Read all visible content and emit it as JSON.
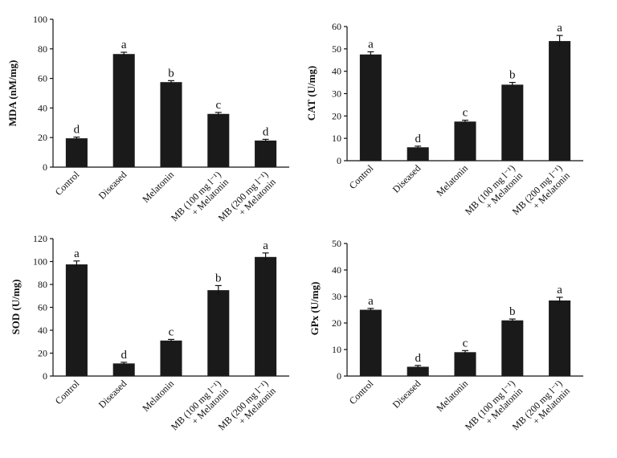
{
  "chart_data": [
    {
      "type": "bar",
      "ylabel": "MDA  (nM/mg)",
      "ylim": [
        0,
        100
      ],
      "yticks": [
        0,
        20,
        40,
        60,
        80,
        100
      ],
      "categories": [
        [
          "Control"
        ],
        [
          "Diseased"
        ],
        [
          "Melatonin"
        ],
        [
          "MB (100 mg l⁻¹)",
          "+ Melatonin"
        ],
        [
          "MB (200 mg l⁻¹)",
          "+ Melatonin"
        ]
      ],
      "values": [
        19.5,
        76.5,
        57.5,
        36,
        18
      ],
      "errors": [
        0.8,
        1.2,
        1.0,
        1.0,
        0.8
      ],
      "significance": [
        "d",
        "a",
        "b",
        "c",
        "d"
      ]
    },
    {
      "type": "bar",
      "ylabel": "CAT  (U/mg)",
      "ylim": [
        0,
        60
      ],
      "yticks": [
        0,
        10,
        20,
        30,
        40,
        50,
        60
      ],
      "categories": [
        [
          "Control"
        ],
        [
          "Diseased"
        ],
        [
          "Melatonin"
        ],
        [
          "MB (100 mg l⁻¹)",
          "+ Melatonin"
        ],
        [
          "MB (200 mg l⁻¹)",
          "+ Melatonin"
        ]
      ],
      "values": [
        47.5,
        6,
        17.5,
        34,
        53.5
      ],
      "errors": [
        1.2,
        0.5,
        0.6,
        1.0,
        2.5
      ],
      "significance": [
        "a",
        "d",
        "c",
        "b",
        "a"
      ]
    },
    {
      "type": "bar",
      "ylabel": "SOD  (U/mg)",
      "ylim": [
        0,
        120
      ],
      "yticks": [
        0,
        20,
        40,
        60,
        80,
        100,
        120
      ],
      "categories": [
        [
          "Control"
        ],
        [
          "Diseased"
        ],
        [
          "Melatonin"
        ],
        [
          "MB (100 mg l⁻¹)",
          "+ Melatonin"
        ],
        [
          "MB (200 mg l⁻¹)",
          "+ Melatonin"
        ]
      ],
      "values": [
        97.5,
        11,
        31,
        75,
        104
      ],
      "errors": [
        3,
        1,
        1,
        4,
        3.5
      ],
      "significance": [
        "a",
        "d",
        "c",
        "b",
        "a"
      ]
    },
    {
      "type": "bar",
      "ylabel": "GPx  (U/mg)",
      "ylim": [
        0,
        50
      ],
      "yticks": [
        0,
        10,
        20,
        30,
        40,
        50
      ],
      "categories": [
        [
          "Control"
        ],
        [
          "Diseased"
        ],
        [
          "Melatonin"
        ],
        [
          "MB (100 mg l⁻¹)",
          "+ Melatonin"
        ],
        [
          "MB (200 mg l⁻¹)",
          "+ Melatonin"
        ]
      ],
      "values": [
        25,
        3.5,
        9,
        21,
        28.5
      ],
      "errors": [
        0.5,
        0.5,
        0.6,
        0.5,
        1.2
      ],
      "significance": [
        "a",
        "d",
        "c",
        "b",
        "a"
      ]
    }
  ]
}
